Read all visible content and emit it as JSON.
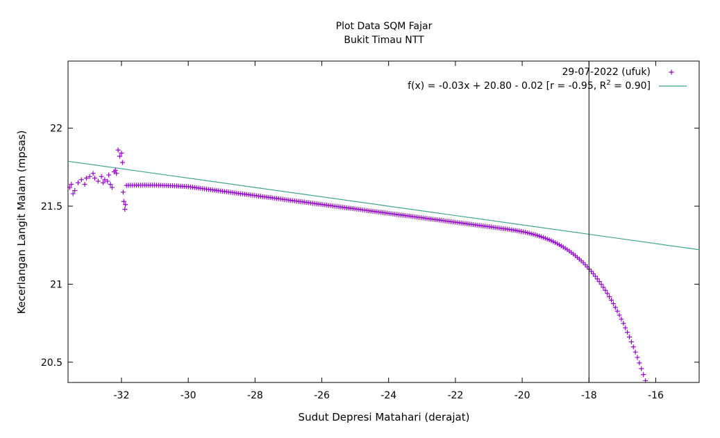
{
  "chart_data": {
    "type": "scatter",
    "title": "Plot Data SQM Fajar",
    "subtitle": "Bukit Timau NTT",
    "xlabel": "Sudut Depresi Matahari (derajat)",
    "ylabel": "Kecerlangan Langit Malam (mpsas)",
    "xlim": [
      -33.6,
      -14.7
    ],
    "ylim": [
      20.37,
      22.43
    ],
    "xticks": [
      -32,
      -30,
      -28,
      -26,
      -24,
      -22,
      -20,
      -18,
      -16
    ],
    "xtick_labels": [
      "-32",
      "-30",
      "-28",
      "-26",
      "-24",
      "-22",
      "-20",
      "-18",
      "-16"
    ],
    "yticks": [
      20.5,
      21,
      21.5,
      22
    ],
    "ytick_labels": [
      "20.5",
      "21",
      "21.5",
      "22"
    ],
    "grid": false,
    "legend_position": "top-right",
    "vertical_line_x": -18,
    "series": [
      {
        "name": "29-07-2022 (ufuk)",
        "marker": "+",
        "color": "#9400d3",
        "points": [
          [
            -33.55,
            21.62
          ],
          [
            -33.5,
            21.64
          ],
          [
            -33.45,
            21.58
          ],
          [
            -33.4,
            21.6
          ],
          [
            -33.3,
            21.65
          ],
          [
            -33.2,
            21.67
          ],
          [
            -33.1,
            21.64
          ],
          [
            -33.05,
            21.68
          ],
          [
            -32.95,
            21.69
          ],
          [
            -32.85,
            21.71
          ],
          [
            -32.8,
            21.68
          ],
          [
            -32.7,
            21.66
          ],
          [
            -32.6,
            21.69
          ],
          [
            -32.55,
            21.65
          ],
          [
            -32.5,
            21.67
          ],
          [
            -32.42,
            21.66
          ],
          [
            -32.38,
            21.7
          ],
          [
            -32.33,
            21.64
          ],
          [
            -32.28,
            21.62
          ],
          [
            -32.22,
            21.72
          ],
          [
            -32.18,
            21.73
          ],
          [
            -32.15,
            21.71
          ],
          [
            -32.1,
            21.86
          ],
          [
            -32.05,
            21.82
          ],
          [
            -32.0,
            21.84
          ],
          [
            -31.97,
            21.78
          ],
          [
            -31.95,
            21.59
          ],
          [
            -31.93,
            21.53
          ],
          [
            -31.9,
            21.48
          ],
          [
            -31.88,
            21.51
          ]
        ],
        "regular_segments": [
          {
            "x_start": -31.85,
            "x_end": -15.65,
            "step": 0.06
          }
        ]
      },
      {
        "name": "f(x) = -0.03x + 20.80 - 0.02 [r = -0.95, R",
        "name_sup": "2",
        "name_tail": " = 0.90]",
        "type": "line",
        "color": "#3ba68a",
        "slope": -0.03,
        "intercept": 20.78
      }
    ]
  }
}
